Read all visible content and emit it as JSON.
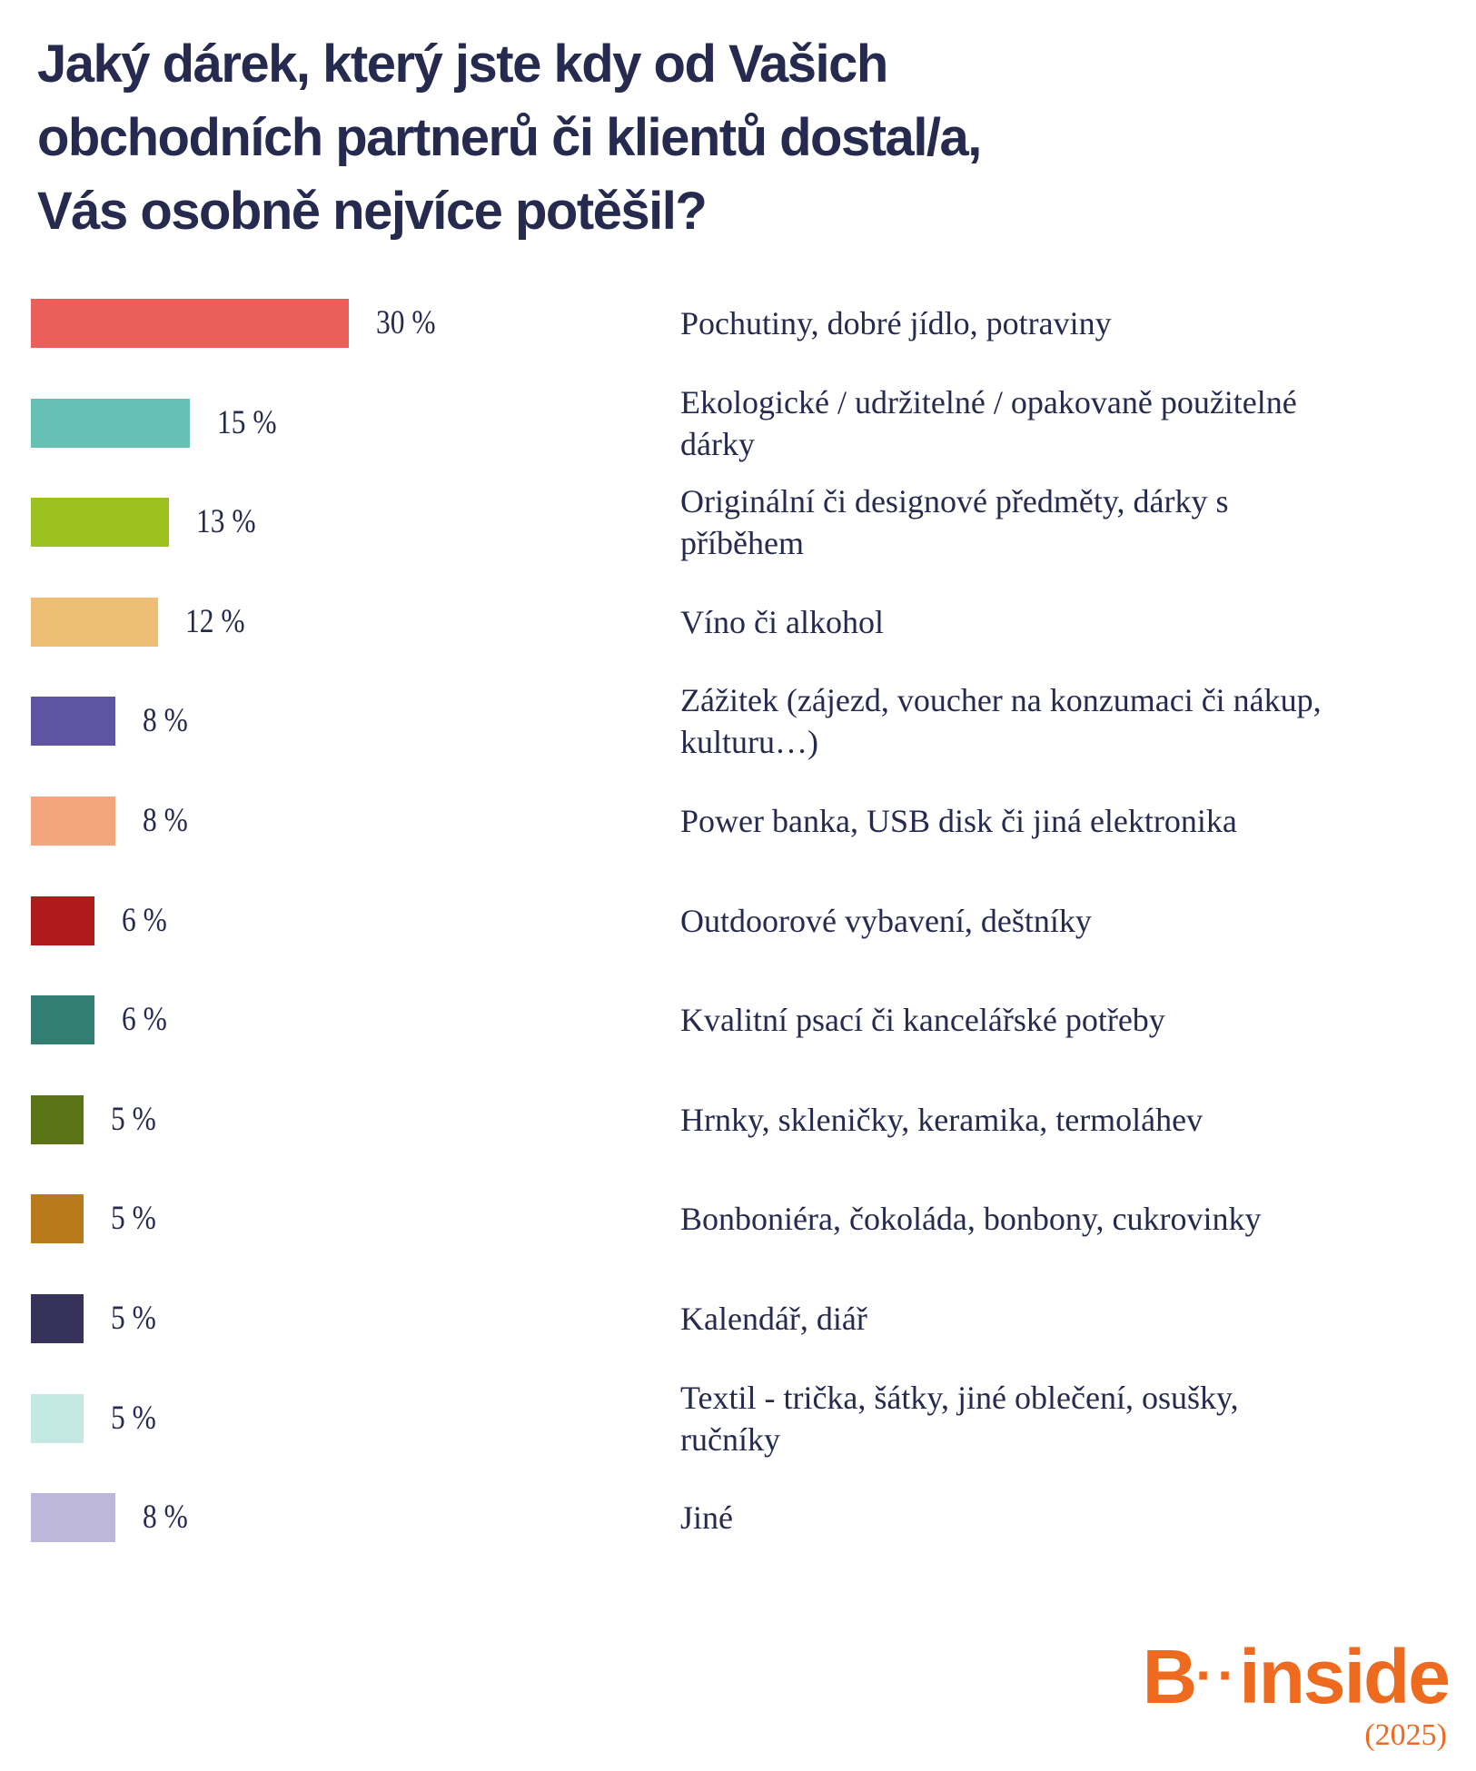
{
  "chart_data": {
    "type": "bar",
    "orientation": "horizontal",
    "title": "Jaký dárek, který jste kdy od Vašich obchodních partnerů či klientů dostal/a, Vás osobně nejvíce potěšil?",
    "title_lines": [
      "Jaký dárek, který jste kdy od Vašich",
      "obchodních partnerů či klientů dostal/a,",
      "Vás osobně nejvíce potěšil?"
    ],
    "xlabel": "",
    "ylabel": "",
    "xlim": [
      0,
      30
    ],
    "grid": false,
    "categories": [
      "Pochutiny, dobré jídlo, potraviny",
      "Ekologické / udržitelné / opakovaně použitelné dárky",
      "Originální či designové předměty, dárky s příběhem",
      "Víno či alkohol",
      "Zážitek (zájezd, voucher na konzumaci či nákup, kulturu…)",
      "Power banka, USB disk či jiná elektronika",
      "Outdoorové vybavení, deštníky",
      "Kvalitní psací či kancelářské potřeby",
      "Hrnky, skleničky, keramika, termoláhev",
      "Bonboniéra, čokoláda, bonbony, cukrovinky",
      "Kalendář, diář",
      "Textil - trička, šátky, jiné oblečení, osušky, ručníky",
      "Jiné"
    ],
    "values": [
      30,
      15,
      13,
      12,
      8,
      8,
      6,
      6,
      5,
      5,
      5,
      5,
      8
    ],
    "value_labels": [
      "30 %",
      "15 %",
      "13 %",
      "12 %",
      "8 %",
      "8 %",
      "6 %",
      "6 %",
      "5 %",
      "5 %",
      "5 %",
      "5 %",
      "8 %"
    ],
    "colors": [
      "#eb5f5b",
      "#66c1b4",
      "#9dc11e",
      "#edbe74",
      "#5e54a2",
      "#f4a57b",
      "#b11a1b",
      "#327e72",
      "#5a7416",
      "#b87a1a",
      "#363259",
      "#c4e8e2",
      "#bdb7dc"
    ]
  },
  "logo": {
    "brand": "B··inside",
    "year": "(2025)"
  }
}
